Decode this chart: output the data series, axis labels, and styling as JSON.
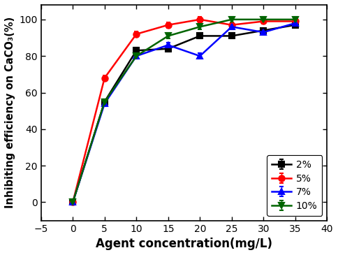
{
  "series": [
    {
      "label": "2%",
      "color": "#000000",
      "marker": "s",
      "x": [
        0,
        5,
        10,
        15,
        20,
        25,
        30,
        35
      ],
      "y": [
        0,
        55,
        83,
        84,
        91,
        91,
        94,
        97
      ]
    },
    {
      "label": "5%",
      "color": "#ff0000",
      "marker": "o",
      "x": [
        0,
        5,
        10,
        15,
        20,
        25,
        30,
        35
      ],
      "y": [
        0,
        68,
        92,
        97,
        100,
        97,
        99,
        99
      ]
    },
    {
      "label": "7%",
      "color": "#0000ff",
      "marker": "^",
      "x": [
        0,
        5,
        10,
        15,
        20,
        25,
        30,
        35
      ],
      "y": [
        0,
        54,
        80,
        86,
        80,
        96,
        93,
        98
      ]
    },
    {
      "label": "10%",
      "color": "#006400",
      "marker": "v",
      "x": [
        0,
        5,
        10,
        15,
        20,
        25,
        30,
        35
      ],
      "y": [
        0,
        55,
        80,
        91,
        96,
        100,
        100,
        100
      ]
    }
  ],
  "xlabel": "Agent concentration(mg/L)",
  "ylabel": "Inhibiting efficiency on CaCO₃(%)",
  "xlim": [
    -5,
    40
  ],
  "ylim": [
    -10,
    108
  ],
  "xticks": [
    -5,
    0,
    5,
    10,
    15,
    20,
    25,
    30,
    35,
    40
  ],
  "yticks": [
    0,
    20,
    40,
    60,
    80,
    100
  ],
  "linewidth": 1.8,
  "markersize": 6,
  "markeredgewidth": 1.5,
  "errorbar_size": 1.5
}
